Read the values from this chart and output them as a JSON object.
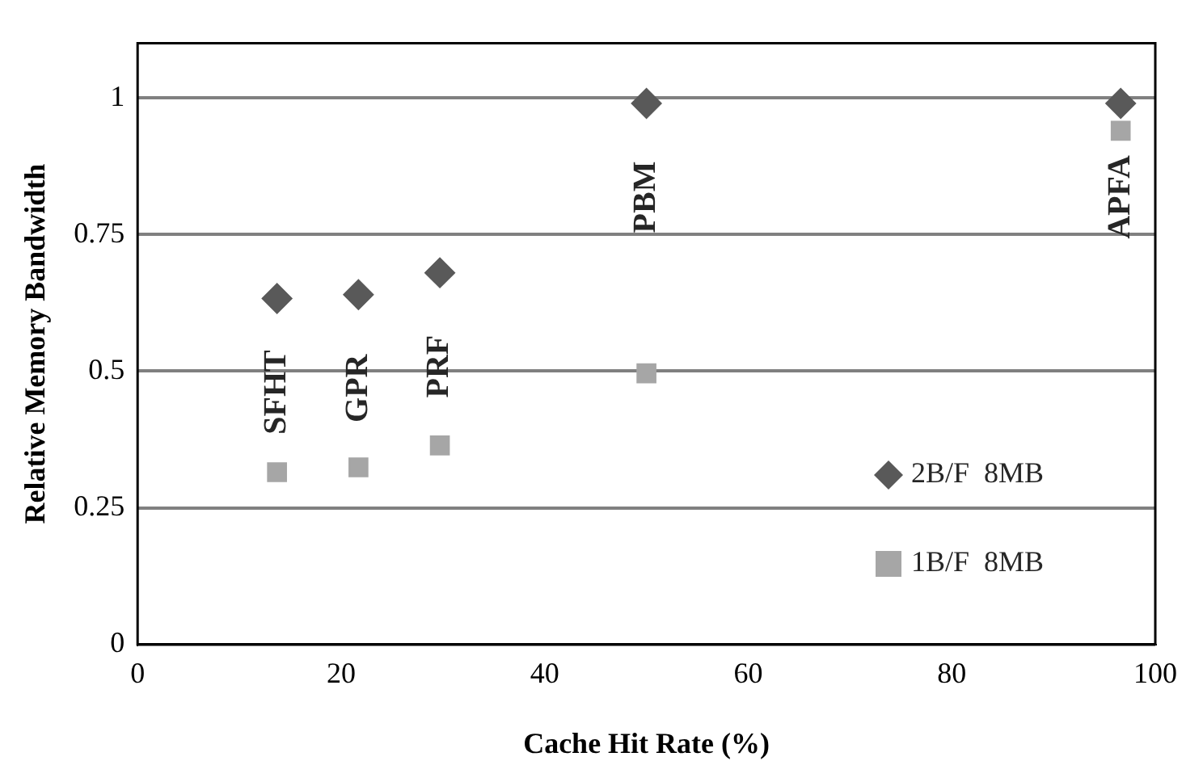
{
  "chart_data": {
    "type": "scatter",
    "xlabel": "Cache Hit Rate (%)",
    "ylabel": "Relative Memory Bandwidth",
    "xlim": [
      0,
      100
    ],
    "xticks": [
      0,
      20,
      40,
      60,
      80,
      100
    ],
    "ylim": [
      0,
      1.1
    ],
    "yticks": [
      0,
      0.25,
      0.5,
      0.75,
      1
    ],
    "grid": "y",
    "legend": "right",
    "series": [
      {
        "name": "2B/F  8MB",
        "color": "#595959",
        "marker": "diamond",
        "x": [
          13.7,
          21.7,
          29.7,
          50,
          96.6
        ],
        "values": [
          0.633,
          0.64,
          0.68,
          0.99,
          0.99
        ]
      },
      {
        "name": "1B/F  8MB",
        "color": "#a6a6a6",
        "marker": "square",
        "x": [
          13.7,
          21.7,
          29.7,
          50,
          96.6
        ],
        "values": [
          0.315,
          0.324,
          0.364,
          0.496,
          0.94
        ]
      }
    ],
    "annotations": [
      {
        "text": "SFHT",
        "x": 13.7,
        "y": 0.633
      },
      {
        "text": "GPR",
        "x": 21.7,
        "y": 0.64
      },
      {
        "text": "PRF",
        "x": 29.7,
        "y": 0.68
      },
      {
        "text": "PBM",
        "x": 50,
        "y": 0.99
      },
      {
        "text": "APFA",
        "x": 96.6,
        "y": 0.99
      }
    ]
  }
}
